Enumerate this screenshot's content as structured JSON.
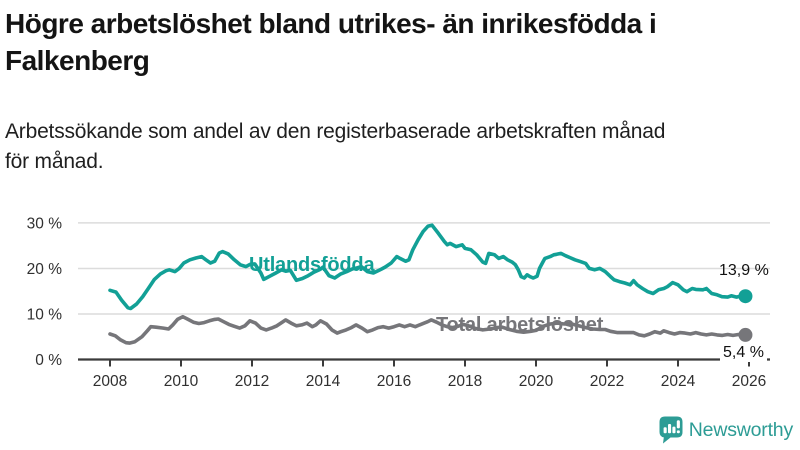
{
  "header": {
    "title_lines": [
      "Högre arbetslöshet bland utrikes- än inrikesfödda i",
      "Falkenberg"
    ],
    "subtitle_lines": [
      "Arbetssökande som andel av den registerbaserade arbetskraften månad",
      "för månad."
    ]
  },
  "branding": {
    "logo_text": "Newsworthy",
    "logo_color": "#2D9C95",
    "logo_icon": "bar-chart-speech-bubble"
  },
  "chart_data": {
    "type": "line",
    "title": "Högre arbetslöshet bland utrikes- än inrikesfödda i Falkenberg",
    "subtitle": "Arbetssökande som andel av den registerbaserade arbetskraften månad för månad.",
    "xlabel": "",
    "ylabel": "",
    "ylim": [
      0,
      30
    ],
    "xlim": [
      2007.1,
      2026.6
    ],
    "grid": "horizontal",
    "grid_color": "#DCDCDC",
    "axis_color": "#3B3B3B",
    "tick_label_color": "#303030",
    "x_ticks": [
      2008,
      2010,
      2012,
      2014,
      2016,
      2018,
      2020,
      2022,
      2024,
      2026
    ],
    "x_tick_labels": [
      "2008",
      "2010",
      "2012",
      "2014",
      "2016",
      "2018",
      "2020",
      "2022",
      "2024",
      "2026"
    ],
    "y_ticks": [
      0,
      10,
      20,
      30
    ],
    "y_tick_labels": [
      "0 %",
      "10 %",
      "20 %",
      "30 %"
    ],
    "legend_position": "inline-labels-on-lines",
    "series": [
      {
        "name": "Utlandsfödda",
        "color": "#12A096",
        "end_label": "13,9 %",
        "end_value": 13.9,
        "x": [
          2008.0,
          2008.17,
          2008.33,
          2008.5,
          2008.58,
          2008.75,
          2008.92,
          2009.08,
          2009.25,
          2009.42,
          2009.58,
          2009.67,
          2009.83,
          2009.95,
          2010.08,
          2010.25,
          2010.42,
          2010.58,
          2010.7,
          2010.83,
          2010.95,
          2011.08,
          2011.17,
          2011.33,
          2011.5,
          2011.67,
          2011.83,
          2011.95,
          2012.08,
          2012.25,
          2012.33,
          2012.5,
          2012.67,
          2012.83,
          2012.95,
          2013.08,
          2013.25,
          2013.42,
          2013.58,
          2013.75,
          2013.92,
          2014.0,
          2014.17,
          2014.33,
          2014.5,
          2014.67,
          2014.83,
          2014.95,
          2015.08,
          2015.25,
          2015.42,
          2015.58,
          2015.75,
          2015.92,
          2016.08,
          2016.17,
          2016.33,
          2016.42,
          2016.53,
          2016.68,
          2016.82,
          2016.96,
          2017.07,
          2017.25,
          2017.42,
          2017.5,
          2017.58,
          2017.75,
          2017.92,
          2018.0,
          2018.17,
          2018.33,
          2018.5,
          2018.58,
          2018.67,
          2018.83,
          2018.95,
          2019.08,
          2019.2,
          2019.33,
          2019.42,
          2019.5,
          2019.58,
          2019.67,
          2019.75,
          2019.83,
          2019.92,
          2020.03,
          2020.1,
          2020.2,
          2020.25,
          2020.4,
          2020.5,
          2020.58,
          2020.7,
          2020.83,
          2020.95,
          2021.1,
          2021.25,
          2021.4,
          2021.5,
          2021.65,
          2021.8,
          2021.95,
          2022.1,
          2022.2,
          2022.35,
          2022.5,
          2022.65,
          2022.75,
          2022.85,
          2023.0,
          2023.15,
          2023.3,
          2023.45,
          2023.6,
          2023.7,
          2023.85,
          2024.0,
          2024.15,
          2024.25,
          2024.4,
          2024.5,
          2024.7,
          2024.8,
          2024.95,
          2025.1,
          2025.24,
          2025.4,
          2025.5,
          2025.65,
          2025.8,
          2025.9
        ],
        "values": [
          15.2,
          14.8,
          13.0,
          11.4,
          11.2,
          12.2,
          13.8,
          15.6,
          17.6,
          18.8,
          19.5,
          19.7,
          19.3,
          20.0,
          21.2,
          21.9,
          22.3,
          22.6,
          21.9,
          21.2,
          21.6,
          23.4,
          23.7,
          23.2,
          21.9,
          20.8,
          20.4,
          20.9,
          21.0,
          19.0,
          17.6,
          18.3,
          19.0,
          19.7,
          19.4,
          19.6,
          17.4,
          17.8,
          18.4,
          19.2,
          19.8,
          20.3,
          18.4,
          17.9,
          18.8,
          19.3,
          19.9,
          20.1,
          20.4,
          19.3,
          19.0,
          19.6,
          20.3,
          21.2,
          22.6,
          22.2,
          21.6,
          21.9,
          24.1,
          26.3,
          28.1,
          29.3,
          29.5,
          27.7,
          25.9,
          25.2,
          25.5,
          24.8,
          25.2,
          24.4,
          24.1,
          23.0,
          21.4,
          21.1,
          23.3,
          23.0,
          22.2,
          22.6,
          21.9,
          21.4,
          20.8,
          19.7,
          18.2,
          17.9,
          18.6,
          18.2,
          17.9,
          18.3,
          20.0,
          21.5,
          22.2,
          22.6,
          23.0,
          23.1,
          23.3,
          22.8,
          22.4,
          21.9,
          21.5,
          21.1,
          20.0,
          19.7,
          20.0,
          19.3,
          18.2,
          17.5,
          17.1,
          16.8,
          16.4,
          17.3,
          16.4,
          15.6,
          14.9,
          14.5,
          15.3,
          15.6,
          16.0,
          16.9,
          16.4,
          15.3,
          14.9,
          15.6,
          15.4,
          15.3,
          15.6,
          14.5,
          14.2,
          13.8,
          13.7,
          14.0,
          13.7,
          14.0,
          13.9
        ]
      },
      {
        "name": "Total arbetslöshet",
        "color": "#76767A",
        "end_label": "5,4 %",
        "end_value": 5.4,
        "x": [
          2008.0,
          2008.15,
          2008.3,
          2008.45,
          2008.55,
          2008.7,
          2008.9,
          2009.05,
          2009.15,
          2009.3,
          2009.5,
          2009.65,
          2009.77,
          2009.9,
          2010.05,
          2010.2,
          2010.35,
          2010.5,
          2010.65,
          2010.8,
          2010.95,
          2011.05,
          2011.2,
          2011.35,
          2011.5,
          2011.65,
          2011.8,
          2011.94,
          2012.1,
          2012.25,
          2012.4,
          2012.55,
          2012.7,
          2012.85,
          2012.95,
          2013.1,
          2013.25,
          2013.4,
          2013.55,
          2013.7,
          2013.8,
          2013.93,
          2014.1,
          2014.25,
          2014.4,
          2014.5,
          2014.65,
          2014.8,
          2014.93,
          2015.1,
          2015.25,
          2015.4,
          2015.55,
          2015.7,
          2015.85,
          2016.0,
          2016.15,
          2016.3,
          2016.45,
          2016.6,
          2016.72,
          2016.85,
          2016.95,
          2017.05,
          2017.2,
          2017.35,
          2017.5,
          2017.65,
          2017.8,
          2017.95,
          2018.1,
          2018.3,
          2018.5,
          2018.7,
          2018.9,
          2019.05,
          2019.25,
          2019.45,
          2019.65,
          2019.85,
          2020.0,
          2020.2,
          2020.4,
          2020.6,
          2020.8,
          2020.95,
          2021.2,
          2021.4,
          2021.6,
          2021.8,
          2021.95,
          2022.1,
          2022.3,
          2022.5,
          2022.75,
          2022.9,
          2023.05,
          2023.2,
          2023.35,
          2023.5,
          2023.6,
          2023.75,
          2023.9,
          2024.05,
          2024.2,
          2024.35,
          2024.5,
          2024.65,
          2024.8,
          2024.95,
          2025.1,
          2025.25,
          2025.4,
          2025.55,
          2025.7,
          2025.8,
          2025.9
        ],
        "values": [
          5.6,
          5.2,
          4.3,
          3.7,
          3.6,
          3.9,
          5.0,
          6.3,
          7.2,
          7.1,
          6.9,
          6.7,
          7.6,
          8.8,
          9.4,
          8.8,
          8.2,
          7.9,
          8.1,
          8.5,
          8.8,
          8.9,
          8.3,
          7.7,
          7.3,
          6.9,
          7.4,
          8.5,
          8.0,
          6.9,
          6.5,
          6.9,
          7.4,
          8.2,
          8.7,
          8.0,
          7.4,
          7.6,
          8.0,
          7.2,
          7.6,
          8.5,
          7.8,
          6.5,
          5.8,
          6.1,
          6.5,
          7.0,
          7.6,
          6.9,
          6.1,
          6.5,
          7.0,
          7.2,
          6.9,
          7.2,
          7.6,
          7.2,
          7.6,
          7.2,
          7.6,
          8.0,
          8.3,
          8.7,
          8.2,
          7.6,
          7.2,
          7.0,
          7.3,
          7.7,
          7.4,
          6.8,
          6.5,
          6.7,
          7.0,
          7.1,
          6.6,
          6.2,
          6.0,
          6.2,
          6.4,
          7.3,
          7.8,
          8.0,
          7.8,
          7.9,
          7.4,
          7.0,
          6.7,
          6.6,
          6.6,
          6.2,
          5.9,
          5.9,
          5.9,
          5.4,
          5.2,
          5.6,
          6.1,
          5.8,
          6.3,
          5.9,
          5.6,
          5.9,
          5.8,
          5.6,
          5.9,
          5.6,
          5.4,
          5.6,
          5.4,
          5.3,
          5.5,
          5.3,
          5.5,
          5.3,
          5.4
        ]
      }
    ]
  }
}
